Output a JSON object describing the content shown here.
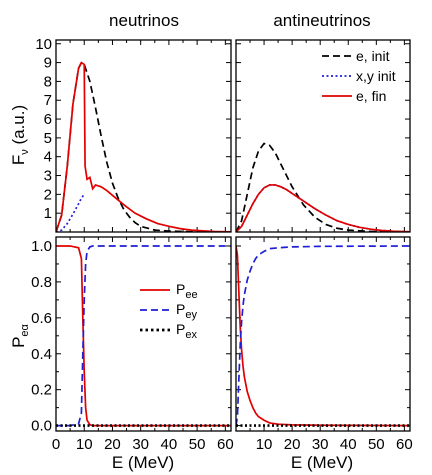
{
  "panel_titles": [
    "neutrinos",
    "antineutrinos"
  ],
  "colors": {
    "e_init": "#000000",
    "xy_init": "#1f1fd6",
    "e_fin": "#e00000",
    "P_ee": "#e00000",
    "P_ey": "#1f1fd6",
    "P_ex": "#000000"
  },
  "chart_data": [
    {
      "type": "line",
      "panel": "top-left",
      "title": "neutrinos",
      "xlabel": "",
      "ylabel": "F_ν (a.u.)",
      "xlim": [
        0,
        62
      ],
      "ylim": [
        0,
        10.2
      ],
      "yticks": [
        1,
        2,
        3,
        4,
        5,
        6,
        7,
        8,
        9,
        10
      ],
      "series": [
        {
          "name": "e, init",
          "style": "dashed",
          "color": "#000000",
          "x": [
            0,
            2,
            4,
            6,
            8,
            9,
            10,
            12,
            14,
            16,
            18,
            20,
            22,
            24,
            26,
            28,
            30,
            35,
            40,
            50,
            60
          ],
          "y": [
            0,
            0.9,
            3.5,
            6.8,
            8.7,
            9.0,
            8.9,
            8.0,
            6.6,
            5.1,
            3.7,
            2.6,
            1.8,
            1.2,
            0.8,
            0.5,
            0.3,
            0.1,
            0.05,
            0,
            0
          ]
        },
        {
          "name": "x,y init",
          "style": "dotted",
          "color": "#1f1fd6",
          "x": [
            0,
            2,
            4,
            6,
            8,
            9,
            10
          ],
          "y": [
            0,
            0.1,
            0.45,
            0.95,
            1.5,
            1.8,
            2.0
          ]
        },
        {
          "name": "e, fin",
          "style": "solid",
          "color": "#e00000",
          "x": [
            0,
            2,
            4,
            6,
            8,
            9,
            10,
            10.3,
            11,
            12,
            13,
            14,
            16,
            18,
            20,
            24,
            28,
            32,
            36,
            40,
            44,
            48,
            52,
            56,
            60,
            62
          ],
          "y": [
            0,
            0.9,
            3.5,
            6.8,
            8.7,
            9.0,
            8.9,
            3.5,
            2.8,
            2.9,
            2.3,
            2.5,
            2.4,
            2.2,
            1.95,
            1.45,
            1.0,
            0.7,
            0.45,
            0.3,
            0.18,
            0.1,
            0.06,
            0.03,
            0.015,
            0.01
          ]
        }
      ]
    },
    {
      "type": "line",
      "panel": "top-right",
      "title": "antineutrinos",
      "xlim": [
        0,
        62
      ],
      "ylim": [
        0,
        10.2
      ],
      "legend": {
        "entries": [
          "e, init",
          "x,y init",
          "e, fin"
        ],
        "placement": "top-right"
      },
      "series": [
        {
          "name": "e, init",
          "style": "dashed",
          "color": "#000000",
          "x": [
            0,
            2,
            4,
            6,
            8,
            10,
            12,
            14,
            16,
            18,
            20,
            24,
            28,
            32,
            36,
            40,
            48,
            56,
            62
          ],
          "y": [
            0,
            0.6,
            2.0,
            3.4,
            4.3,
            4.7,
            4.6,
            4.2,
            3.6,
            3.0,
            2.4,
            1.45,
            0.8,
            0.4,
            0.2,
            0.1,
            0.03,
            0,
            0
          ]
        },
        {
          "name": "x,y init",
          "style": "dotted",
          "color": "#1f1fd6",
          "x": [
            0,
            2,
            4,
            6,
            8,
            10,
            12,
            14,
            16,
            18,
            20,
            24,
            28,
            32,
            36,
            40,
            44,
            48,
            52,
            56,
            60,
            62
          ],
          "y": [
            0,
            0.3,
            0.9,
            1.5,
            2.0,
            2.35,
            2.5,
            2.5,
            2.4,
            2.25,
            2.05,
            1.65,
            1.25,
            0.9,
            0.6,
            0.4,
            0.25,
            0.15,
            0.08,
            0.04,
            0.02,
            0.01
          ]
        },
        {
          "name": "e, fin",
          "style": "solid",
          "color": "#e00000",
          "x": [
            0,
            2,
            4,
            6,
            8,
            10,
            12,
            14,
            16,
            18,
            20,
            24,
            28,
            32,
            36,
            40,
            44,
            48,
            52,
            56,
            60,
            62
          ],
          "y": [
            0,
            0.3,
            0.9,
            1.5,
            2.0,
            2.35,
            2.5,
            2.5,
            2.4,
            2.25,
            2.05,
            1.65,
            1.25,
            0.9,
            0.6,
            0.4,
            0.25,
            0.15,
            0.08,
            0.04,
            0.02,
            0.01
          ]
        }
      ]
    },
    {
      "type": "line",
      "panel": "bottom-left",
      "xlabel": "E (MeV)",
      "ylabel": "P_eα",
      "xlim": [
        0,
        62
      ],
      "ylim": [
        -0.03,
        1.05
      ],
      "xticks": [
        0,
        10,
        20,
        30,
        40,
        50,
        60
      ],
      "yticks": [
        0.0,
        0.2,
        0.4,
        0.6,
        0.8,
        1.0
      ],
      "legend": {
        "entries": [
          "P_ee",
          "P_ey",
          "P_ex"
        ],
        "placement": "center-right"
      },
      "series": [
        {
          "name": "P_ee",
          "style": "solid",
          "color": "#e00000",
          "x": [
            0,
            5,
            8,
            9,
            9.5,
            10,
            10.5,
            11,
            12,
            13,
            20,
            40,
            62
          ],
          "y": [
            1.0,
            1.0,
            0.99,
            0.93,
            0.6,
            0.3,
            0.1,
            0.03,
            0.005,
            0,
            0,
            0,
            0
          ]
        },
        {
          "name": "P_ey",
          "style": "dashed",
          "color": "#1f1fd6",
          "x": [
            0,
            5,
            8,
            9,
            9.5,
            10,
            10.5,
            11,
            12,
            13,
            20,
            40,
            62
          ],
          "y": [
            0,
            0,
            0.01,
            0.07,
            0.4,
            0.7,
            0.9,
            0.97,
            0.995,
            1.0,
            1.0,
            1.0,
            1.0
          ]
        },
        {
          "name": "P_ex",
          "style": "dotted",
          "color": "#000000",
          "x": [
            0,
            10,
            20,
            30,
            40,
            50,
            62
          ],
          "y": [
            0,
            0,
            0,
            0,
            0,
            0,
            0
          ]
        }
      ]
    },
    {
      "type": "line",
      "panel": "bottom-right",
      "xlabel": "E (MeV)",
      "xlim": [
        0,
        62
      ],
      "ylim": [
        -0.03,
        1.05
      ],
      "xticks": [
        10,
        20,
        30,
        40,
        50,
        60
      ],
      "series": [
        {
          "name": "P_ee",
          "style": "solid",
          "color": "#e00000",
          "x": [
            0,
            0.5,
            1,
            1.5,
            2,
            2.5,
            3,
            4,
            5,
            6,
            7,
            8,
            10,
            12,
            15,
            20,
            30,
            62
          ],
          "y": [
            1.0,
            0.95,
            0.75,
            0.55,
            0.42,
            0.33,
            0.27,
            0.19,
            0.14,
            0.1,
            0.07,
            0.05,
            0.03,
            0.015,
            0.008,
            0.004,
            0.002,
            0
          ]
        },
        {
          "name": "P_ey",
          "style": "dashed",
          "color": "#1f1fd6",
          "x": [
            0,
            0.5,
            1,
            1.5,
            2,
            2.5,
            3,
            4,
            5,
            6,
            7,
            8,
            10,
            12,
            15,
            20,
            30,
            62
          ],
          "y": [
            0,
            0.05,
            0.25,
            0.45,
            0.58,
            0.67,
            0.73,
            0.81,
            0.86,
            0.9,
            0.93,
            0.95,
            0.97,
            0.985,
            0.99,
            0.995,
            0.998,
            1.0
          ]
        },
        {
          "name": "P_ex",
          "style": "dotted",
          "color": "#000000",
          "x": [
            0,
            10,
            20,
            30,
            40,
            50,
            62
          ],
          "y": [
            0,
            0,
            0,
            0,
            0,
            0,
            0
          ]
        }
      ]
    }
  ]
}
